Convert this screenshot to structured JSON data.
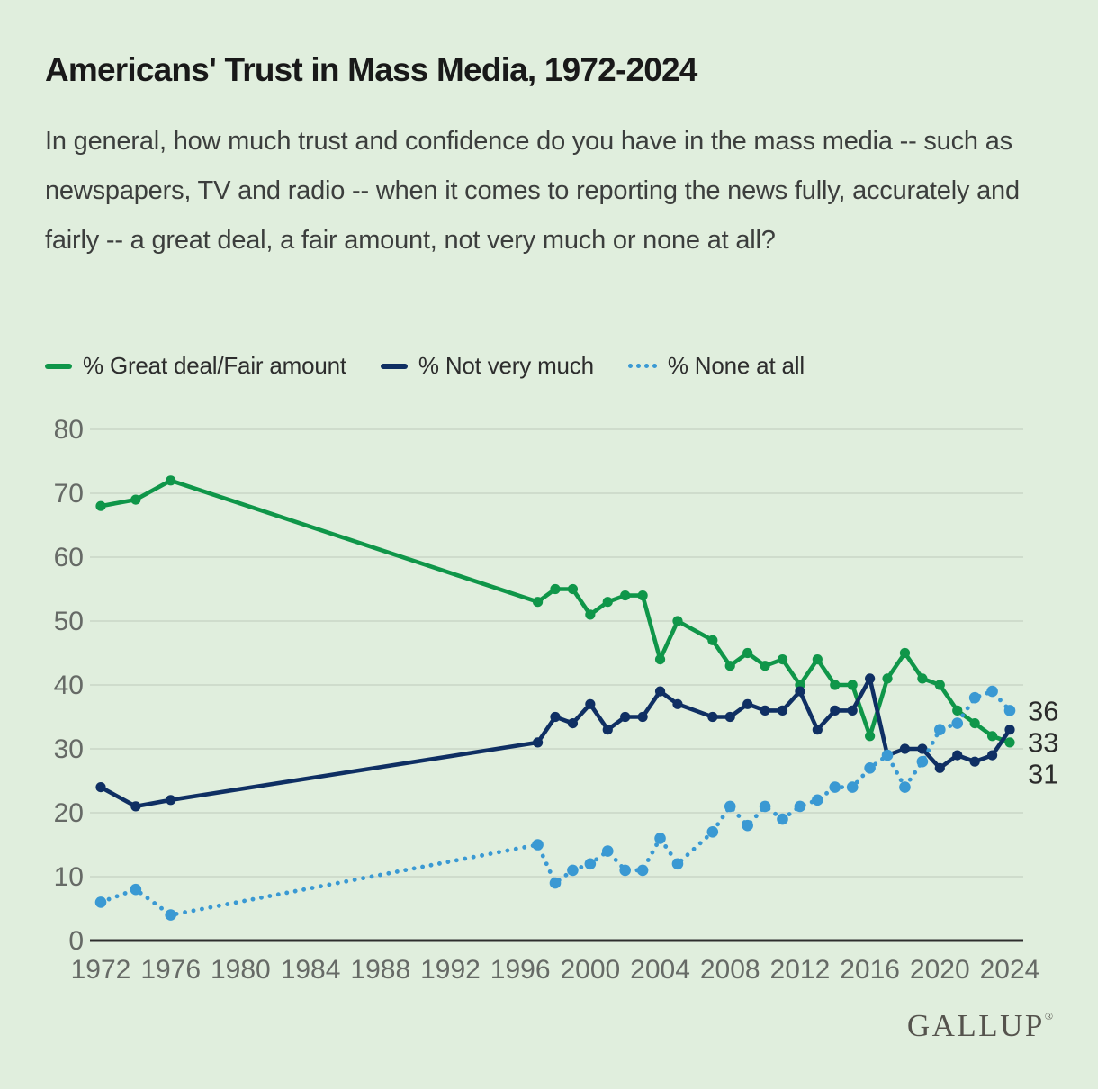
{
  "header": {
    "title": "Americans' Trust in Mass Media, 1972-2024",
    "subtitle": "In general, how much trust and confidence do you have in the mass media -- such as newspapers, TV and radio -- when it comes to reporting the news fully, accurately and fairly -- a great deal, a fair amount, not very much or none at all?"
  },
  "legend": {
    "items": [
      {
        "label": "% Great deal/Fair amount",
        "color": "#0f9649",
        "style": "solid"
      },
      {
        "label": "% Not very much",
        "color": "#0f2f63",
        "style": "solid"
      },
      {
        "label": "% None at all",
        "color": "#3a99d3",
        "style": "dotted"
      }
    ]
  },
  "chart_data": {
    "type": "line",
    "title": "Americans' Trust in Mass Media, 1972-2024",
    "x": [
      1972,
      1974,
      1976,
      1997,
      1998,
      1999,
      2000,
      2001,
      2002,
      2003,
      2004,
      2005,
      2007,
      2008,
      2009,
      2010,
      2011,
      2012,
      2013,
      2014,
      2015,
      2016,
      2017,
      2018,
      2019,
      2020,
      2021,
      2022,
      2023,
      2024
    ],
    "series": [
      {
        "name": "% Great deal/Fair amount",
        "color": "#0f9649",
        "style": "solid",
        "values": [
          68,
          69,
          72,
          53,
          55,
          55,
          51,
          53,
          54,
          54,
          44,
          50,
          47,
          43,
          45,
          43,
          44,
          40,
          44,
          40,
          40,
          32,
          41,
          45,
          41,
          40,
          36,
          34,
          32,
          31
        ]
      },
      {
        "name": "% Not very much",
        "color": "#0f2f63",
        "style": "solid",
        "values": [
          24,
          21,
          22,
          31,
          35,
          34,
          37,
          33,
          35,
          35,
          39,
          37,
          35,
          35,
          37,
          36,
          36,
          39,
          33,
          36,
          36,
          41,
          29,
          30,
          30,
          27,
          29,
          28,
          29,
          33
        ]
      },
      {
        "name": "% None at all",
        "color": "#3a99d3",
        "style": "dotted",
        "values": [
          6,
          8,
          4,
          15,
          9,
          11,
          12,
          14,
          11,
          11,
          16,
          12,
          17,
          21,
          18,
          21,
          19,
          21,
          22,
          24,
          24,
          27,
          29,
          24,
          28,
          33,
          34,
          38,
          39,
          36
        ]
      }
    ],
    "end_labels": [
      "36",
      "33",
      "31"
    ],
    "y_ticks": [
      0,
      10,
      20,
      30,
      40,
      50,
      60,
      70,
      80
    ],
    "x_ticks": [
      1972,
      1976,
      1980,
      1984,
      1988,
      1992,
      1996,
      2000,
      2004,
      2008,
      2012,
      2016,
      2020,
      2024
    ],
    "ylim": [
      0,
      80
    ],
    "xlim": [
      1972,
      2024
    ],
    "grid": "horizontal",
    "legend_position": "top",
    "colors": {
      "background": "#e0eedd",
      "gridline": "#c9d6c6",
      "zero_axis": "#2e2e2e",
      "tick_text": "#666a66"
    }
  },
  "footer": {
    "logo": "GALLUP",
    "trademark": "®"
  }
}
